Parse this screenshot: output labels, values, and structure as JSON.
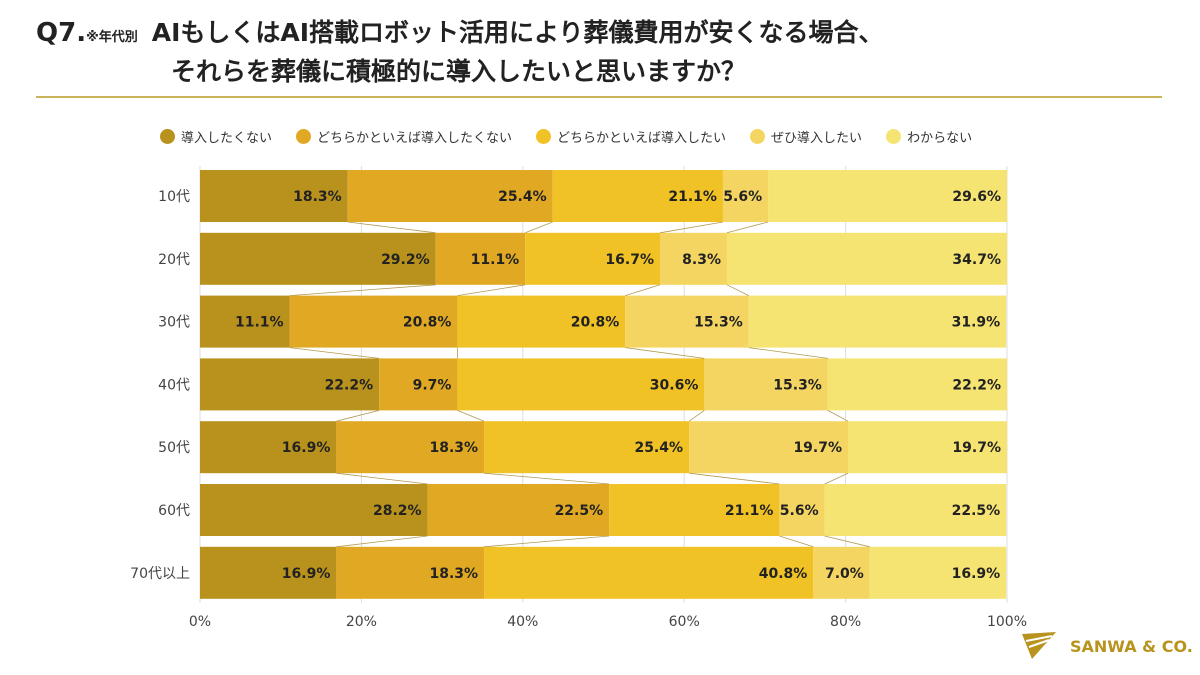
{
  "header": {
    "q": "Q7.",
    "note": "※年代別",
    "line1": "AIもしくはAI搭載ロボット活用により葬儀費用が安くなる場合、",
    "line2": "それらを葬儀に積極的に導入したいと思いますか？"
  },
  "logo": {
    "text": "SANWA & CO."
  },
  "chart_data": {
    "type": "bar",
    "orientation": "horizontal",
    "stacked": "percent",
    "categories": [
      "10代",
      "20代",
      "30代",
      "40代",
      "50代",
      "60代",
      "70代以上"
    ],
    "series": [
      {
        "name": "導入したくない",
        "color": "#b8921c",
        "values": [
          18.3,
          29.2,
          11.1,
          22.2,
          16.9,
          28.2,
          16.9
        ]
      },
      {
        "name": "どちらかといえば導入したくない",
        "color": "#e1a923",
        "values": [
          25.4,
          11.1,
          20.8,
          9.7,
          18.3,
          22.5,
          18.3
        ]
      },
      {
        "name": "どちらかといえば導入したい",
        "color": "#f0c226",
        "values": [
          21.1,
          16.7,
          20.8,
          30.6,
          25.4,
          21.1,
          40.8
        ]
      },
      {
        "name": "ぜひ導入したい",
        "color": "#f5d561",
        "values": [
          5.6,
          8.3,
          15.3,
          15.3,
          19.7,
          5.6,
          7.0
        ]
      },
      {
        "name": "わからない",
        "color": "#f5e372",
        "values": [
          29.6,
          34.7,
          31.9,
          22.2,
          19.7,
          22.5,
          16.9
        ]
      }
    ],
    "xlim": [
      0,
      100
    ],
    "xticks": [
      "0%",
      "20%",
      "40%",
      "60%",
      "80%",
      "100%"
    ],
    "legend": "top",
    "grid": true
  }
}
